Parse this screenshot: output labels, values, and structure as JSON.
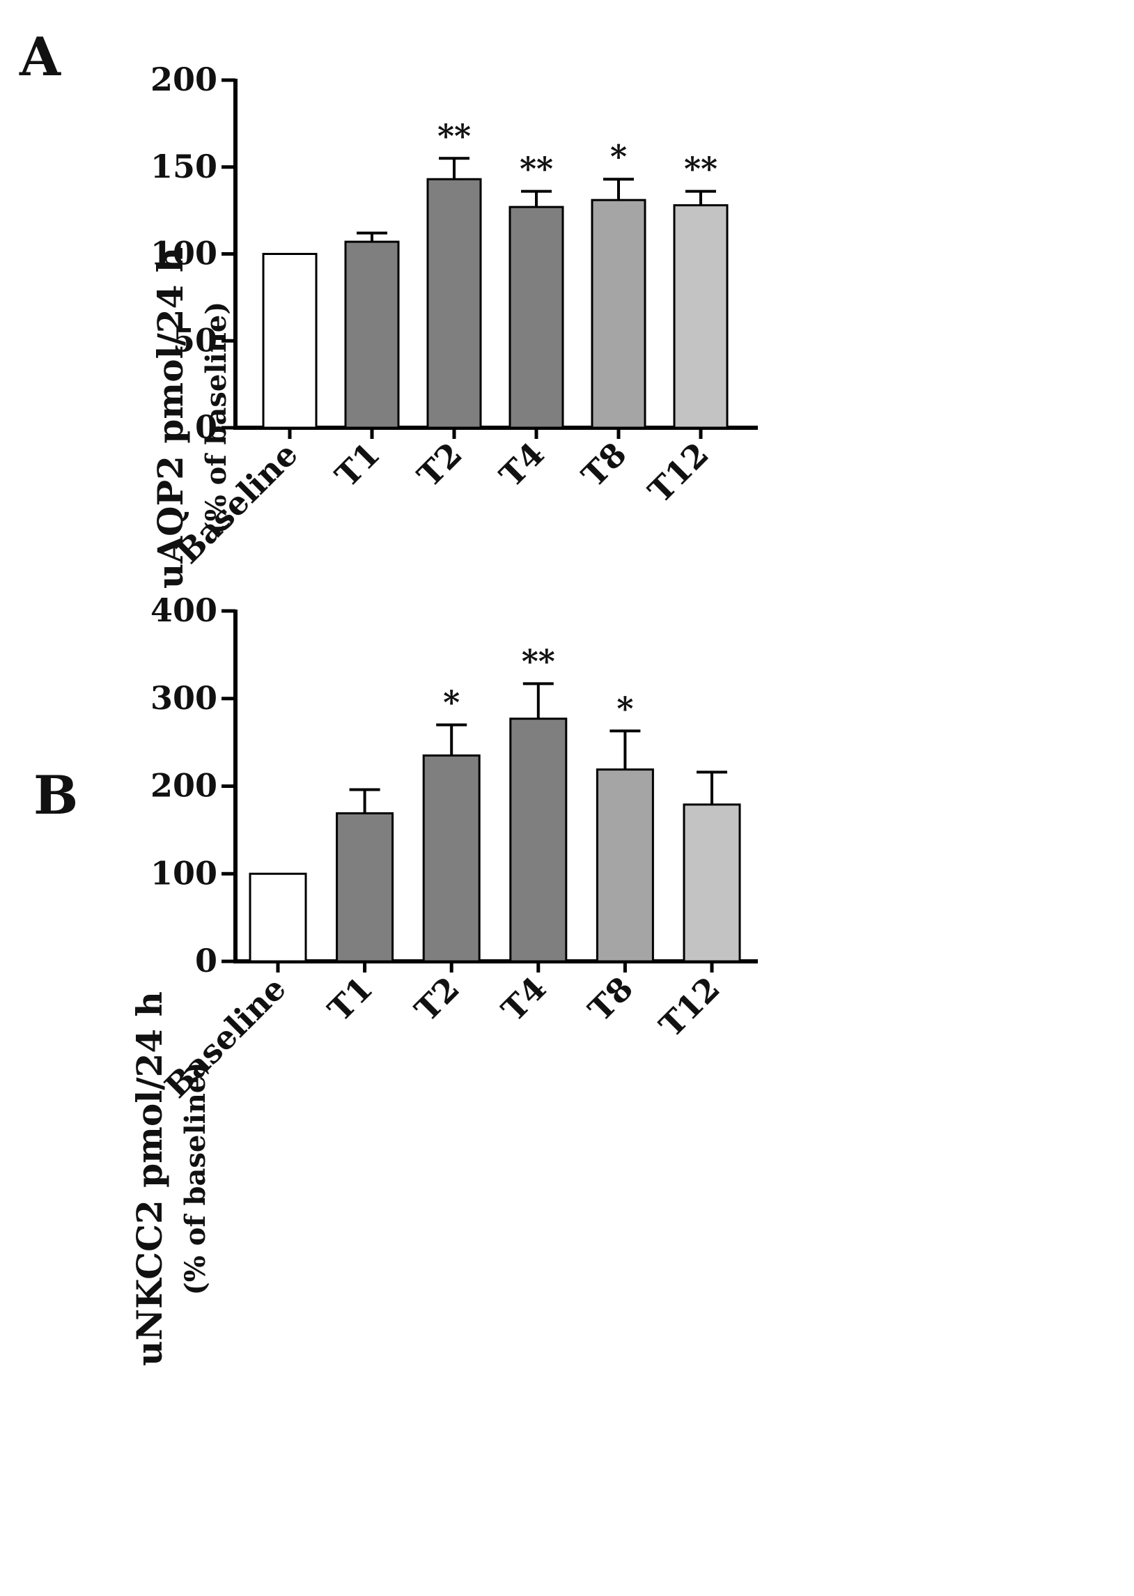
{
  "chart_data": [
    {
      "type": "bar",
      "panel_label": "A",
      "ylabel_line1": "uAQP2 pmol/24 h",
      "ylabel_line2": "(% of baseline)",
      "categories": [
        "Baseline",
        "T1",
        "T2",
        "T4",
        "T8",
        "T12"
      ],
      "values": [
        100,
        107,
        143,
        127,
        131,
        128
      ],
      "errors": [
        0,
        5,
        12,
        9,
        12,
        8
      ],
      "significance": [
        "",
        "",
        "**",
        "**",
        "*",
        "**"
      ],
      "ylim": [
        0,
        200
      ],
      "yticks": [
        "0",
        "50",
        "100",
        "150",
        "200"
      ],
      "bar_colors": [
        "#ffffff",
        "#7f7f7f",
        "#7f7f7f",
        "#7f7f7f",
        "#a5a5a5",
        "#c3c3c3"
      ]
    },
    {
      "type": "bar",
      "panel_label": "B",
      "ylabel_line1": "uNKCC2 pmol/24 h",
      "ylabel_line2": "(% of baseline)",
      "categories": [
        "Baseline",
        "T1",
        "T2",
        "T4",
        "T8",
        "T12"
      ],
      "values": [
        100,
        169,
        235,
        277,
        219,
        179
      ],
      "errors": [
        0,
        27,
        35,
        40,
        44,
        37
      ],
      "significance": [
        "",
        "",
        "*",
        "**",
        "*",
        ""
      ],
      "ylim": [
        0,
        400
      ],
      "yticks": [
        "0",
        "100",
        "200",
        "300",
        "400"
      ],
      "bar_colors": [
        "#ffffff",
        "#7f7f7f",
        "#7f7f7f",
        "#7f7f7f",
        "#a5a5a5",
        "#c3c3c3"
      ]
    }
  ]
}
